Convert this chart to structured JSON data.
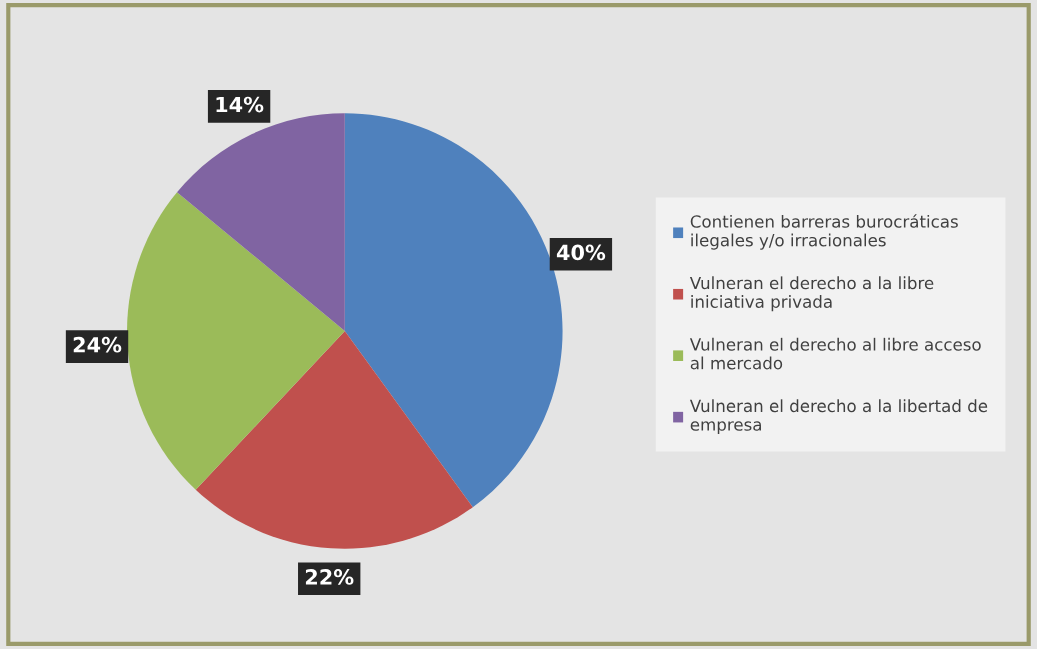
{
  "chart_data": {
    "type": "pie",
    "categories": [
      "Contienen barreras burocráticas\nilegales y/o irracionales",
      "Vulneran el derecho a la libre\niniciativa privada",
      "Vulneran el derecho al libre acceso\nal mercado",
      "Vulneran el derecho a la libertad de\nempresa"
    ],
    "values": [
      40,
      22,
      24,
      14
    ],
    "value_labels": [
      "40%",
      "22%",
      "24%",
      "14%"
    ],
    "colors": [
      "#4f81bd",
      "#c0504d",
      "#9bbb59",
      "#8064a2"
    ],
    "legend": "right"
  }
}
